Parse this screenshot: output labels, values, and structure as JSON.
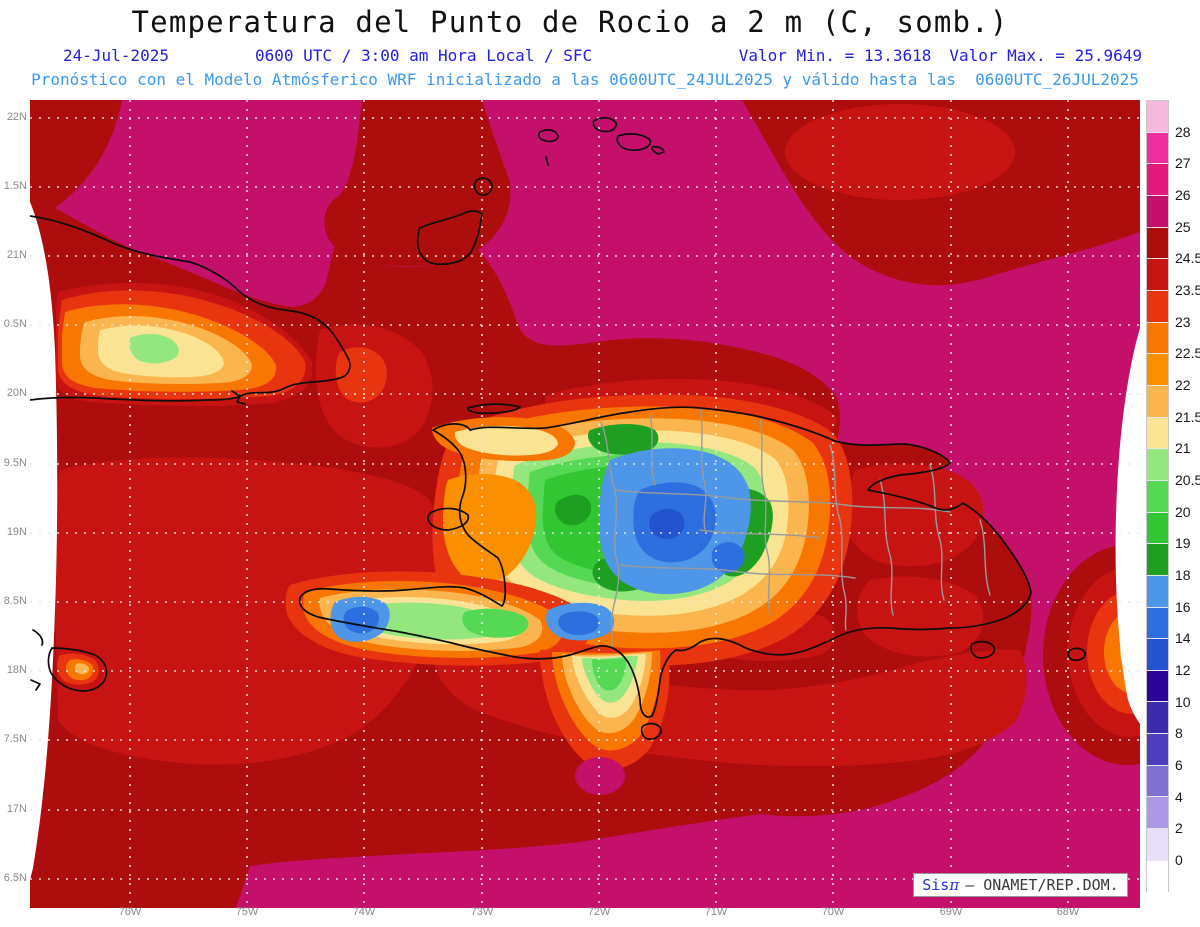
{
  "header": {
    "title": "Temperatura del Punto de Rocio a 2 m (C, somb.)",
    "date": "24-Jul-2025",
    "time_line": "0600 UTC / 3:00 am Hora Local / SFC",
    "valor_min": "Valor Min. = 13.3618",
    "valor_max": "Valor Max. = 25.9649",
    "forecast_line": "Pronóstico con el Modelo Atmósferico WRF inicializado a las 0600UTC_24JUL2025 y válido hasta las  0600UTC_26JUL2025"
  },
  "stats": {
    "valor_min": 13.3618,
    "valor_max": 25.9649,
    "units": "C"
  },
  "axes": {
    "lat_labels": [
      "22N",
      "1.5N",
      "21N",
      "0.5N",
      "20N",
      "9.5N",
      "19N",
      "8.5N",
      "18N",
      "7.5N",
      "17N",
      "6.5N"
    ],
    "lon_labels": [
      "76W",
      "75W",
      "74W",
      "73W",
      "72W",
      "71W",
      "70W",
      "69W",
      "68W"
    ]
  },
  "colorbar": {
    "labels": [
      "28",
      "27",
      "26",
      "25",
      "24.5",
      "23.5",
      "23",
      "22.5",
      "22",
      "21.5",
      "21",
      "20.5",
      "20",
      "19",
      "18",
      "16",
      "14",
      "12",
      "10",
      "8",
      "6",
      "4",
      "2",
      "0"
    ],
    "colors": [
      "#F6B8DC",
      "#EF2F9F",
      "#E3197B",
      "#C5106B",
      "#AE0D0D",
      "#C81313",
      "#E93410",
      "#F87702",
      "#FA8F00",
      "#FBB54E",
      "#FAE494",
      "#94E67F",
      "#55D955",
      "#32C732",
      "#1F9F22",
      "#4D96E8",
      "#2E6FE0",
      "#2353CE",
      "#2B0499",
      "#3D2BAE",
      "#4F3DC0",
      "#8070D2",
      "#AC99E6",
      "#E7E0F8",
      "#FFFFFF"
    ]
  },
  "watermark": {
    "brand": "Sis",
    "pi": "π",
    "rest": "– ONAMET/REP.DOM."
  },
  "palette": {
    "magenta": "#C5106B",
    "red_dark": "#AE0D0D",
    "red": "#C81313",
    "red_orange": "#E93410",
    "orange": "#F87702",
    "orange_mid": "#FA8F00",
    "orange_light": "#FBB54E",
    "yellow_pale": "#FAE494",
    "green_light": "#94E67F",
    "green": "#55D955",
    "green_mid": "#32C732",
    "green_dark": "#1F9F22",
    "blue_sky": "#4D96E8",
    "blue": "#2E6FE0",
    "blue_deep": "#2353CE",
    "hdrblue": "#2121DE",
    "hdrazure": "#3B99EE",
    "coast": "#0D0D0D"
  }
}
